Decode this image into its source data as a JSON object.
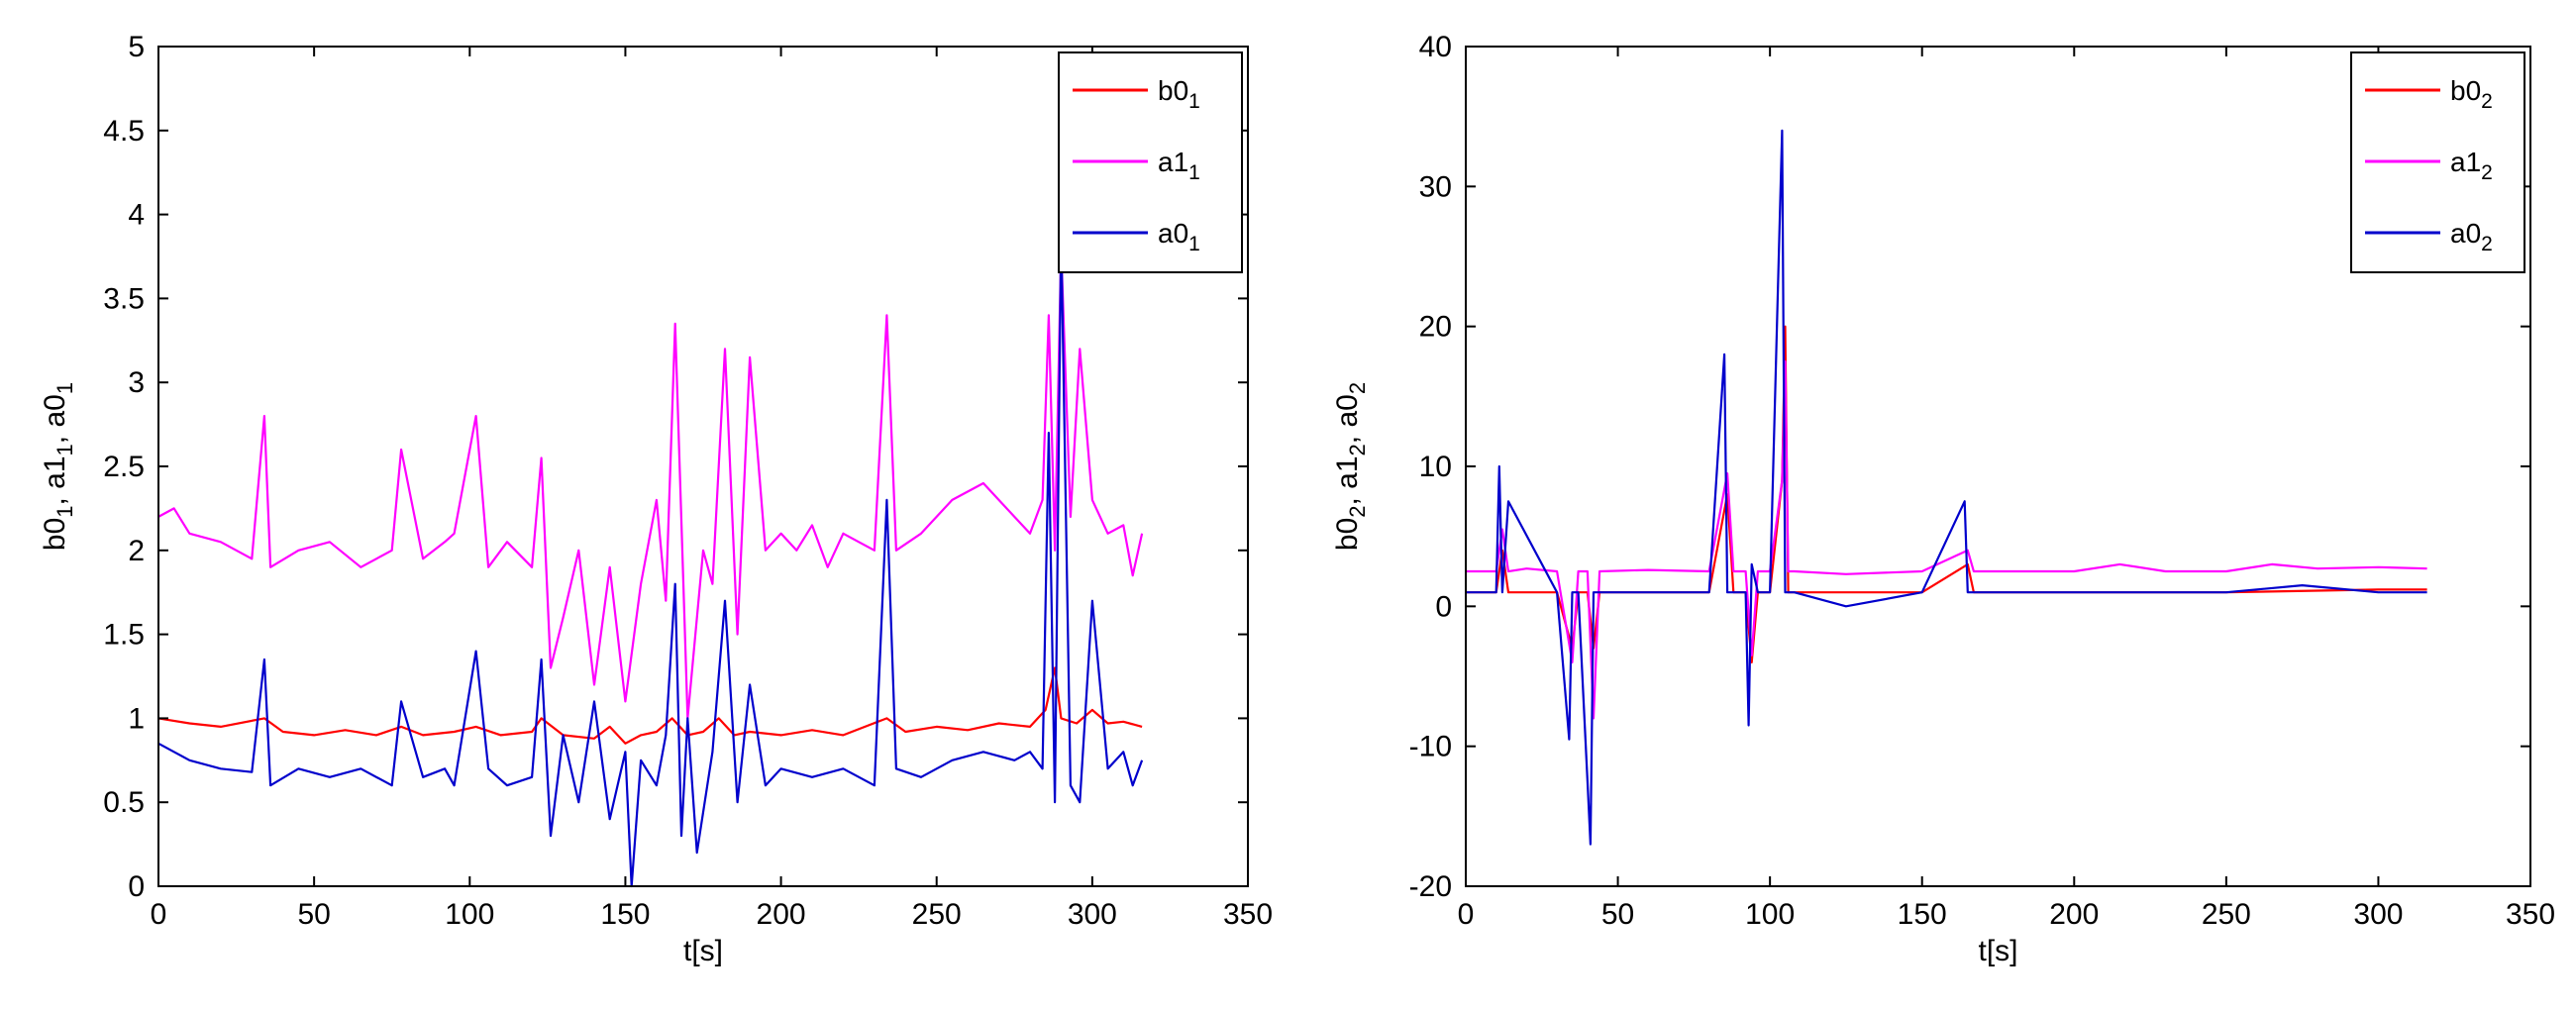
{
  "chart_data": [
    {
      "type": "line",
      "xlabel": "t[s]",
      "ylabel": {
        "parts": [
          [
            "b0",
            "1"
          ],
          [
            "a1",
            "1"
          ],
          [
            "a0",
            "1"
          ]
        ],
        "sep": ", "
      },
      "xlim": [
        0,
        350
      ],
      "ylim": [
        0,
        5
      ],
      "xticks": [
        0,
        50,
        100,
        150,
        200,
        250,
        300,
        350
      ],
      "yticks": [
        0,
        0.5,
        1,
        1.5,
        2,
        2.5,
        3,
        3.5,
        4,
        4.5,
        5
      ],
      "grid": false,
      "legend_position": "top-right",
      "series": [
        {
          "name": "b0",
          "sub": "1",
          "color": "#ff0000",
          "x": [
            0,
            10,
            20,
            34,
            40,
            50,
            60,
            70,
            78,
            85,
            95,
            102,
            110,
            120,
            123,
            130,
            140,
            145,
            150,
            155,
            160,
            165,
            170,
            175,
            180,
            185,
            190,
            200,
            210,
            220,
            234,
            240,
            250,
            260,
            270,
            280,
            285,
            288,
            290,
            295,
            300,
            305,
            310,
            316
          ],
          "values": [
            1.0,
            0.97,
            0.95,
            1.0,
            0.92,
            0.9,
            0.93,
            0.9,
            0.95,
            0.9,
            0.92,
            0.95,
            0.9,
            0.92,
            1.0,
            0.9,
            0.88,
            0.95,
            0.85,
            0.9,
            0.92,
            1.0,
            0.9,
            0.92,
            1.0,
            0.9,
            0.92,
            0.9,
            0.93,
            0.9,
            1.0,
            0.92,
            0.95,
            0.93,
            0.97,
            0.95,
            1.05,
            1.3,
            1.0,
            0.97,
            1.05,
            0.97,
            0.98,
            0.95
          ]
        },
        {
          "name": "a1",
          "sub": "1",
          "color": "#ff00ff",
          "x": [
            0,
            5,
            10,
            20,
            30,
            34,
            36,
            45,
            55,
            65,
            75,
            78,
            85,
            92,
            95,
            102,
            106,
            112,
            120,
            123,
            126,
            130,
            135,
            140,
            145,
            150,
            155,
            160,
            163,
            166,
            170,
            175,
            178,
            182,
            186,
            190,
            195,
            200,
            205,
            210,
            215,
            220,
            225,
            230,
            234,
            237,
            245,
            255,
            265,
            275,
            280,
            284,
            286,
            288,
            290,
            293,
            296,
            300,
            305,
            310,
            313,
            316
          ],
          "values": [
            2.2,
            2.25,
            2.1,
            2.05,
            1.95,
            2.8,
            1.9,
            2.0,
            2.05,
            1.9,
            2.0,
            2.6,
            1.95,
            2.05,
            2.1,
            2.8,
            1.9,
            2.05,
            1.9,
            2.55,
            1.3,
            1.6,
            2.0,
            1.2,
            1.9,
            1.1,
            1.8,
            2.3,
            1.7,
            3.35,
            1.0,
            2.0,
            1.8,
            3.2,
            1.5,
            3.15,
            2.0,
            2.1,
            2.0,
            2.15,
            1.9,
            2.1,
            2.05,
            2.0,
            3.4,
            2.0,
            2.1,
            2.3,
            2.4,
            2.2,
            2.1,
            2.3,
            3.4,
            2.0,
            3.8,
            2.2,
            3.2,
            2.3,
            2.1,
            2.15,
            1.85,
            2.1
          ]
        },
        {
          "name": "a0",
          "sub": "1",
          "color": "#0000cc",
          "x": [
            0,
            5,
            10,
            20,
            30,
            34,
            36,
            45,
            55,
            65,
            75,
            78,
            85,
            92,
            95,
            102,
            106,
            112,
            120,
            123,
            126,
            130,
            135,
            140,
            145,
            150,
            152,
            155,
            160,
            163,
            166,
            168,
            170,
            173,
            178,
            182,
            186,
            190,
            195,
            200,
            210,
            220,
            230,
            234,
            237,
            245,
            255,
            265,
            275,
            280,
            284,
            286,
            288,
            290,
            293,
            296,
            300,
            305,
            310,
            313,
            316
          ],
          "values": [
            0.85,
            0.8,
            0.75,
            0.7,
            0.68,
            1.35,
            0.6,
            0.7,
            0.65,
            0.7,
            0.6,
            1.1,
            0.65,
            0.7,
            0.6,
            1.4,
            0.7,
            0.6,
            0.65,
            1.35,
            0.3,
            0.9,
            0.5,
            1.1,
            0.4,
            0.8,
            0.0,
            0.75,
            0.6,
            0.9,
            1.8,
            0.3,
            1.0,
            0.2,
            0.8,
            1.7,
            0.5,
            1.2,
            0.6,
            0.7,
            0.65,
            0.7,
            0.6,
            2.3,
            0.7,
            0.65,
            0.75,
            0.8,
            0.75,
            0.8,
            0.7,
            2.7,
            0.5,
            3.9,
            0.6,
            0.5,
            1.7,
            0.7,
            0.8,
            0.6,
            0.75
          ]
        }
      ]
    },
    {
      "type": "line",
      "xlabel": "t[s]",
      "ylabel": {
        "parts": [
          [
            "b0",
            "2"
          ],
          [
            "a1",
            "2"
          ],
          [
            "a0",
            "2"
          ]
        ],
        "sep": ", "
      },
      "xlim": [
        0,
        350
      ],
      "ylim": [
        -20,
        40
      ],
      "xticks": [
        0,
        50,
        100,
        150,
        200,
        250,
        300,
        350
      ],
      "yticks": [
        -20,
        -10,
        0,
        10,
        20,
        30,
        40
      ],
      "grid": false,
      "legend_position": "top-right",
      "series": [
        {
          "name": "b0",
          "sub": "2",
          "color": "#ff0000",
          "x": [
            0,
            10,
            12,
            14,
            30,
            35,
            37,
            40,
            42,
            44,
            80,
            86,
            88,
            92,
            94,
            96,
            100,
            104,
            105,
            106,
            108,
            150,
            165,
            167,
            200,
            250,
            300,
            316
          ],
          "values": [
            1.0,
            1.0,
            4.0,
            1.0,
            1.0,
            -3.0,
            1.0,
            1.0,
            -3.0,
            1.0,
            1.0,
            8.0,
            1.0,
            1.0,
            -4.0,
            1.0,
            1.0,
            9.0,
            20.0,
            1.0,
            1.0,
            1.0,
            3.0,
            1.0,
            1.0,
            1.0,
            1.2,
            1.2
          ]
        },
        {
          "name": "a1",
          "sub": "2",
          "color": "#ff00ff",
          "x": [
            0,
            10,
            12,
            14,
            20,
            30,
            35,
            37,
            40,
            42,
            44,
            60,
            80,
            86,
            88,
            92,
            94,
            96,
            100,
            104,
            105,
            106,
            108,
            125,
            150,
            165,
            167,
            185,
            200,
            215,
            230,
            250,
            265,
            280,
            300,
            316
          ],
          "values": [
            2.5,
            2.5,
            5.5,
            2.5,
            2.7,
            2.5,
            -4.0,
            2.5,
            2.5,
            -8.0,
            2.5,
            2.6,
            2.5,
            9.5,
            2.5,
            2.5,
            -3.5,
            2.5,
            2.5,
            9.0,
            17.5,
            2.5,
            2.5,
            2.3,
            2.5,
            4.0,
            2.5,
            2.5,
            2.5,
            3.0,
            2.5,
            2.5,
            3.0,
            2.7,
            2.8,
            2.7
          ]
        },
        {
          "name": "a0",
          "sub": "2",
          "color": "#0000cc",
          "x": [
            0,
            10,
            11,
            12,
            14,
            30,
            34,
            35,
            37,
            40,
            41,
            42,
            44,
            80,
            85,
            86,
            88,
            92,
            93,
            94,
            96,
            100,
            103,
            104,
            105,
            106,
            108,
            125,
            150,
            164,
            165,
            167,
            185,
            200,
            250,
            275,
            300,
            316
          ],
          "values": [
            1.0,
            1.0,
            10.0,
            1.0,
            7.5,
            1.0,
            -9.5,
            1.0,
            1.0,
            -12.5,
            -17.0,
            1.0,
            1.0,
            1.0,
            18.0,
            1.0,
            1.0,
            1.0,
            -8.5,
            3.0,
            1.0,
            1.0,
            26.0,
            34.0,
            1.0,
            1.0,
            1.0,
            0.0,
            1.0,
            7.5,
            1.0,
            1.0,
            1.0,
            1.0,
            1.0,
            1.5,
            1.0,
            1.0
          ]
        }
      ]
    }
  ]
}
